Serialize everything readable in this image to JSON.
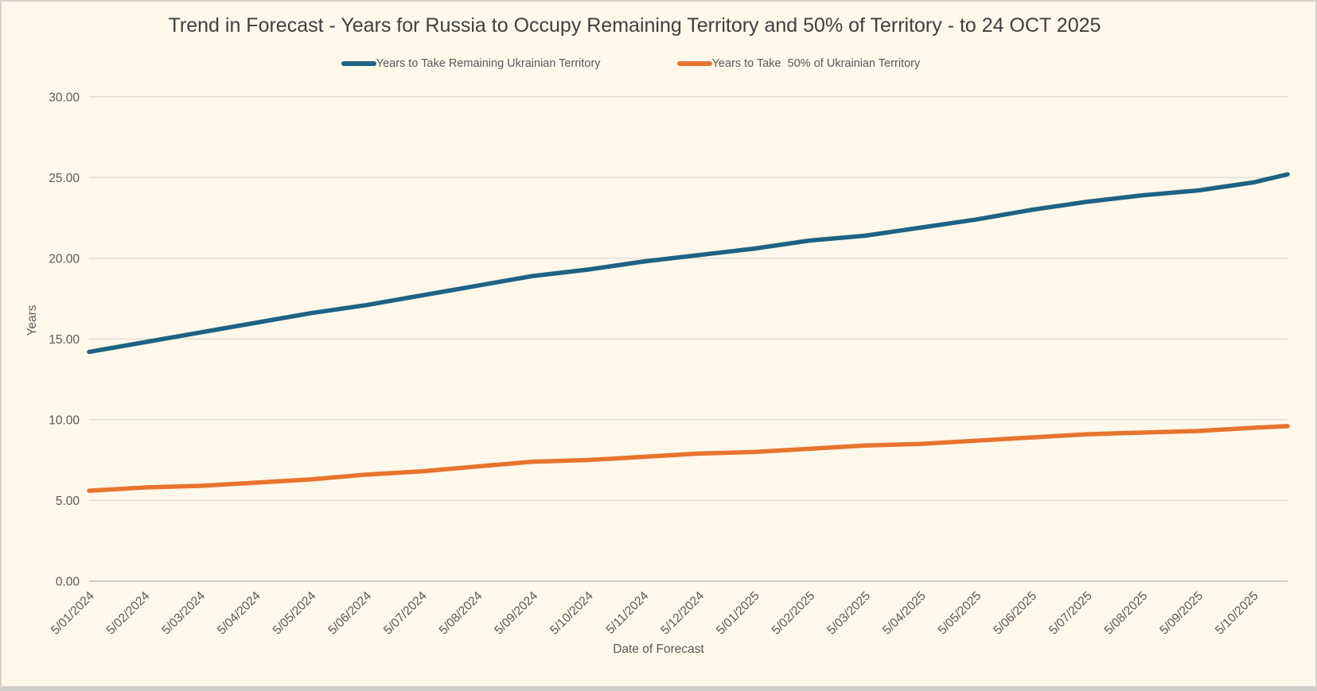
{
  "window": {
    "background_color": "#fdf8e9",
    "border_color": "#d6d3ca"
  },
  "chart_data": {
    "type": "line",
    "title": "Trend in Forecast - Years for Russia to Occupy Remaining Territory and 50% of Territory - to 24 OCT 2025",
    "xlabel": "Date of Forecast",
    "ylabel": "Years",
    "ylim": [
      0,
      30
    ],
    "ytick_step": 5,
    "ytick_labels": [
      "0.00",
      "5.00",
      "10.00",
      "15.00",
      "20.00",
      "25.00",
      "30.00"
    ],
    "grid": true,
    "legend_position": "top",
    "categories": [
      "5/01/2024",
      "5/02/2024",
      "5/03/2024",
      "5/04/2024",
      "5/05/2024",
      "5/06/2024",
      "5/07/2024",
      "5/08/2024",
      "5/09/2024",
      "5/10/2024",
      "5/11/2024",
      "5/12/2024",
      "5/01/2025",
      "5/02/2025",
      "5/03/2025",
      "5/04/2025",
      "5/05/2025",
      "5/06/2025",
      "5/07/2025",
      "5/08/2025",
      "5/09/2025",
      "5/10/2025"
    ],
    "end_date_from_title": "24 OCT 2025",
    "series": [
      {
        "name": "Years to Take Remaining Ukrainian Territory",
        "color": "#1e6284",
        "values": [
          14.2,
          14.8,
          15.4,
          16.0,
          16.6,
          17.1,
          17.7,
          18.3,
          18.9,
          19.3,
          19.8,
          20.2,
          20.6,
          21.1,
          21.4,
          21.9,
          22.4,
          23.0,
          23.5,
          23.9,
          24.2,
          24.7
        ],
        "end_value": 25.2
      },
      {
        "name": "Years to Take  50% of Ukrainian Territory",
        "color": "#e8732e",
        "values": [
          5.6,
          5.8,
          5.9,
          6.1,
          6.3,
          6.6,
          6.8,
          7.1,
          7.4,
          7.5,
          7.7,
          7.9,
          8.0,
          8.2,
          8.4,
          8.5,
          8.7,
          8.9,
          9.1,
          9.2,
          9.3,
          9.5
        ],
        "end_value": 9.6
      }
    ],
    "colors": {
      "gridline": "#dbd9d1",
      "axis_line": "#c6c4bd",
      "tick_text": "#595959",
      "title_text": "#3f3f3f"
    }
  }
}
